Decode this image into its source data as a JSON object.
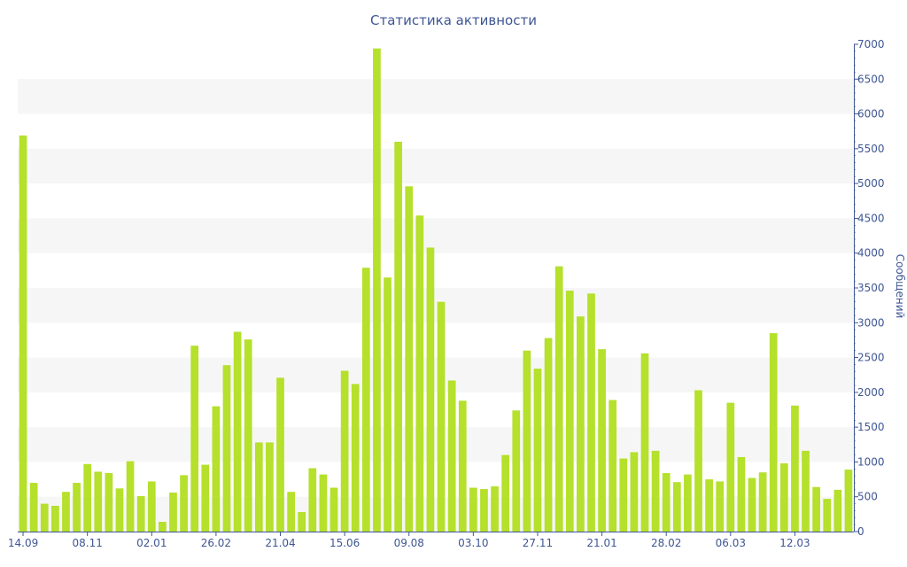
{
  "chart_data": {
    "type": "bar",
    "title": "Статистика активности",
    "ylabel": "Сообщений",
    "y_axis_side": "right",
    "ylim": [
      0,
      7000
    ],
    "yticks": [
      0,
      500,
      1000,
      1500,
      2000,
      2500,
      3000,
      3500,
      4000,
      4500,
      5000,
      5500,
      6000,
      6500,
      7000
    ],
    "x_tick_labels": [
      {
        "index": 0,
        "label": "14.09"
      },
      {
        "index": 6,
        "label": "08.11"
      },
      {
        "index": 12,
        "label": "02.01"
      },
      {
        "index": 18,
        "label": "26.02"
      },
      {
        "index": 24,
        "label": "21.04"
      },
      {
        "index": 30,
        "label": "15.06"
      },
      {
        "index": 36,
        "label": "09.08"
      },
      {
        "index": 42,
        "label": "03.10"
      },
      {
        "index": 48,
        "label": "27.11"
      },
      {
        "index": 54,
        "label": "21.01"
      },
      {
        "index": 60,
        "label": "28.02"
      },
      {
        "index": 66,
        "label": "06.03"
      },
      {
        "index": 72,
        "label": "12.03"
      }
    ],
    "grid": "alternating horizontal bands",
    "bar_color": "#b5e02b",
    "axis_color": "#3e5694",
    "band_color": "#f6f6f6",
    "values": [
      5690,
      700,
      400,
      370,
      570,
      700,
      970,
      860,
      840,
      620,
      1010,
      510,
      720,
      140,
      560,
      810,
      2670,
      960,
      1800,
      2390,
      2870,
      2760,
      1280,
      1280,
      2210,
      570,
      280,
      910,
      820,
      630,
      2310,
      2120,
      3790,
      6940,
      3650,
      5600,
      4960,
      4540,
      4080,
      3300,
      2170,
      1880,
      630,
      610,
      650,
      1100,
      1740,
      2600,
      2340,
      2780,
      3810,
      3460,
      3090,
      3420,
      2620,
      1890,
      1050,
      1140,
      2560,
      1160,
      840,
      710,
      820,
      2030,
      750,
      720,
      1850,
      1070,
      770,
      850,
      2850,
      980,
      1810,
      1160,
      640,
      470,
      600,
      890
    ]
  }
}
